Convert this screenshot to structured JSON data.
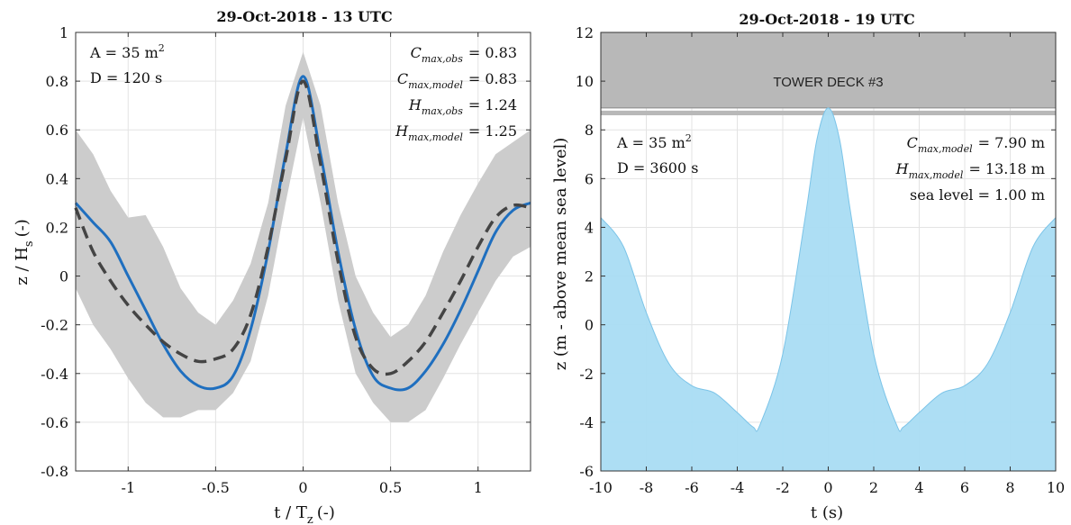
{
  "chart_data": [
    {
      "type": "line",
      "title": "29-Oct-2018 - 13 UTC",
      "xlabel": "t / T",
      "xlabel_sub": "z",
      "xlabel_unit": "(-)",
      "ylabel": "z / H",
      "ylabel_sub": "s",
      "ylabel_unit": "(-)",
      "xlim": [
        -1.3,
        1.3
      ],
      "ylim": [
        -0.8,
        1.0
      ],
      "xticks": [
        -1,
        -0.5,
        0,
        0.5,
        1
      ],
      "yticks": [
        -0.8,
        -0.6,
        -0.4,
        -0.2,
        0,
        0.2,
        0.4,
        0.6,
        0.8,
        1
      ],
      "xtick_labels": [
        "-1",
        "-0.5",
        "0",
        "0.5",
        "1"
      ],
      "ytick_labels": [
        "-0.8",
        "-0.6",
        "-0.4",
        "-0.2",
        "0",
        "0.2",
        "0.4",
        "0.6",
        "0.8",
        "1"
      ],
      "grid": true,
      "annotations_left": [
        "A = 35 m",
        "D = 120 s"
      ],
      "area_sup": "2",
      "annotations_right": [
        {
          "sym": "C",
          "sub": "max,obs",
          "value": "= 0.83"
        },
        {
          "sym": "C",
          "sub": "max,model",
          "value": "= 0.83"
        },
        {
          "sym": "H",
          "sub": "max,obs",
          "value": "= 1.24"
        },
        {
          "sym": "H",
          "sub": "max,model",
          "value": "= 1.25"
        }
      ],
      "series": [
        {
          "style": "solid",
          "color": "#1f6fbf",
          "x": [
            -1.3,
            -1.2,
            -1.1,
            -1.0,
            -0.9,
            -0.8,
            -0.7,
            -0.6,
            -0.5,
            -0.4,
            -0.3,
            -0.2,
            -0.1,
            0.0,
            0.1,
            0.2,
            0.3,
            0.4,
            0.5,
            0.6,
            0.7,
            0.8,
            0.9,
            1.0,
            1.1,
            1.2,
            1.3
          ],
          "y": [
            0.3,
            0.22,
            0.14,
            0.0,
            -0.14,
            -0.28,
            -0.39,
            -0.45,
            -0.46,
            -0.41,
            -0.22,
            0.1,
            0.5,
            0.82,
            0.5,
            0.1,
            -0.22,
            -0.41,
            -0.46,
            -0.46,
            -0.39,
            -0.28,
            -0.14,
            0.02,
            0.18,
            0.27,
            0.3
          ]
        },
        {
          "style": "dashed",
          "color": "#444444",
          "x": [
            -1.3,
            -1.2,
            -1.1,
            -1.0,
            -0.9,
            -0.8,
            -0.7,
            -0.6,
            -0.5,
            -0.4,
            -0.3,
            -0.2,
            -0.1,
            0.0,
            0.1,
            0.2,
            0.3,
            0.4,
            0.5,
            0.6,
            0.7,
            0.8,
            0.9,
            1.0,
            1.1,
            1.2,
            1.3
          ],
          "y": [
            0.28,
            0.1,
            -0.02,
            -0.12,
            -0.2,
            -0.27,
            -0.32,
            -0.35,
            -0.34,
            -0.3,
            -0.16,
            0.12,
            0.48,
            0.8,
            0.46,
            0.06,
            -0.25,
            -0.38,
            -0.4,
            -0.35,
            -0.27,
            -0.15,
            -0.02,
            0.12,
            0.24,
            0.29,
            0.28
          ]
        }
      ],
      "band": {
        "color": "#cccccc",
        "x": [
          -1.3,
          -1.2,
          -1.1,
          -1.0,
          -0.9,
          -0.8,
          -0.7,
          -0.6,
          -0.5,
          -0.4,
          -0.3,
          -0.2,
          -0.1,
          0.0,
          0.1,
          0.2,
          0.3,
          0.4,
          0.5,
          0.6,
          0.7,
          0.8,
          0.9,
          1.0,
          1.1,
          1.2,
          1.3
        ],
        "upper": [
          0.6,
          0.5,
          0.35,
          0.24,
          0.25,
          0.12,
          -0.05,
          -0.15,
          -0.2,
          -0.1,
          0.05,
          0.3,
          0.7,
          0.92,
          0.7,
          0.3,
          0.0,
          -0.15,
          -0.25,
          -0.2,
          -0.08,
          0.1,
          0.25,
          0.38,
          0.5,
          0.55,
          0.6
        ],
        "lower": [
          -0.05,
          -0.2,
          -0.3,
          -0.42,
          -0.52,
          -0.58,
          -0.58,
          -0.55,
          -0.55,
          -0.48,
          -0.35,
          -0.08,
          0.3,
          0.65,
          0.3,
          -0.1,
          -0.4,
          -0.52,
          -0.6,
          -0.6,
          -0.55,
          -0.42,
          -0.28,
          -0.15,
          -0.02,
          0.08,
          0.12
        ]
      }
    },
    {
      "type": "area",
      "title": "29-Oct-2018 - 19 UTC",
      "xlabel": "t (s)",
      "ylabel": "z (m - above mean sea level)",
      "xlim": [
        -10,
        10
      ],
      "ylim": [
        -6,
        12
      ],
      "xticks": [
        -10,
        -8,
        -6,
        -4,
        -2,
        0,
        2,
        4,
        6,
        8,
        10
      ],
      "yticks": [
        -6,
        -4,
        -2,
        0,
        2,
        4,
        6,
        8,
        10,
        12
      ],
      "xtick_labels": [
        "-10",
        "-8",
        "-6",
        "-4",
        "-2",
        "0",
        "2",
        "4",
        "6",
        "8",
        "10"
      ],
      "ytick_labels": [
        "-6",
        "-4",
        "-2",
        "0",
        "2",
        "4",
        "6",
        "8",
        "10",
        "12"
      ],
      "grid": true,
      "deck": {
        "label": "TOWER DECK #3",
        "bottom": 8.6,
        "line": 8.9,
        "top": 12,
        "color": "#b8b8b8"
      },
      "annotations_left": [
        "A = 35 m",
        "D = 3600 s"
      ],
      "area_sup": "2",
      "annotations_right": [
        {
          "sym": "C",
          "sub": "max,model",
          "value": "= 7.90 m"
        },
        {
          "sym": "H",
          "sub": "max,model",
          "value": "= 13.18 m"
        },
        {
          "sym": "",
          "sub": "",
          "value": "sea level = 1.00 m"
        }
      ],
      "fill_color": "#a9dcf3",
      "edge_color": "#7cc4e8",
      "x": [
        -10,
        -9,
        -8,
        -7,
        -6,
        -5,
        -4,
        -3.3,
        -3,
        -2,
        -1,
        -0.5,
        0,
        0.5,
        1,
        2,
        3,
        3.3,
        4,
        5,
        6,
        7,
        8,
        9,
        10
      ],
      "y": [
        4.4,
        3.2,
        0.5,
        -1.6,
        -2.5,
        -2.8,
        -3.6,
        -4.2,
        -4.1,
        -1.2,
        4.5,
        7.6,
        8.9,
        7.6,
        4.5,
        -1.2,
        -4.1,
        -4.2,
        -3.6,
        -2.8,
        -2.5,
        -1.6,
        0.5,
        3.2,
        4.4
      ]
    }
  ]
}
